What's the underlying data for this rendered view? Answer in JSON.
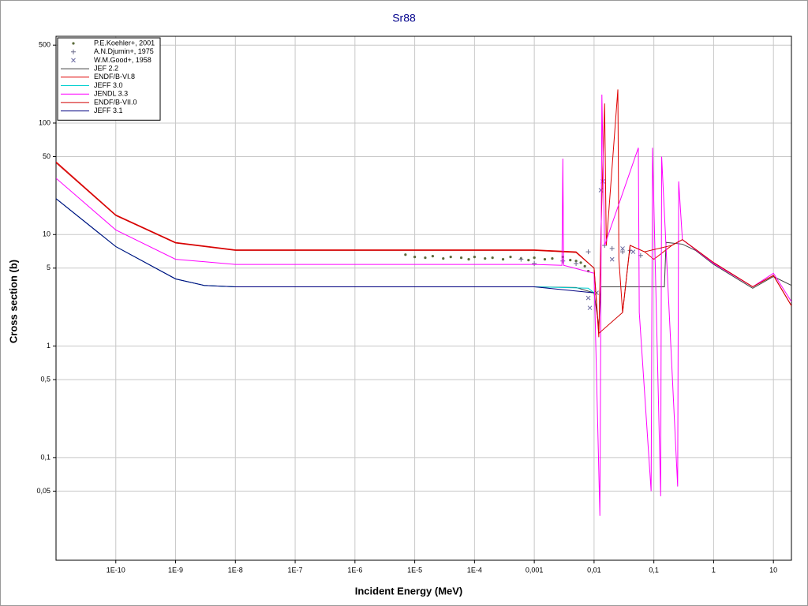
{
  "chart_data": {
    "type": "line",
    "title": "Sr88",
    "x_label": "Incident Energy (MeV)",
    "y_label": "Cross section (b)",
    "xscale": "log",
    "yscale": "log",
    "grid": true,
    "legend": "upper-left",
    "xlim": [
      1e-11,
      20
    ],
    "ylim": [
      0.012,
      600
    ],
    "xticks": [
      {
        "value": 1e-10,
        "label": "1E-10"
      },
      {
        "value": 1e-09,
        "label": "1E-9"
      },
      {
        "value": 1e-08,
        "label": "1E-8"
      },
      {
        "value": 1e-07,
        "label": "1E-7"
      },
      {
        "value": 1e-06,
        "label": "1E-6"
      },
      {
        "value": 1e-05,
        "label": "1E-5"
      },
      {
        "value": 0.0001,
        "label": "1E-4"
      },
      {
        "value": 0.001,
        "label": "0,001"
      },
      {
        "value": 0.01,
        "label": "0,01"
      },
      {
        "value": 0.1,
        "label": "0,1"
      },
      1,
      10
    ],
    "yticks": [
      500,
      100,
      50,
      10,
      5,
      1,
      {
        "value": 0.5,
        "label": "0,5"
      },
      {
        "value": 0.1,
        "label": "0,1"
      },
      {
        "value": 0.05,
        "label": "0,05"
      }
    ],
    "series": [
      {
        "name": "P.E.Koehler+, 2001",
        "style": "dots",
        "color": "#5a6a3a",
        "x": [
          7e-06,
          1e-05,
          1.5e-05,
          2e-05,
          3e-05,
          4e-05,
          6e-05,
          8e-05,
          0.0001,
          0.00015,
          0.0002,
          0.0003,
          0.0004,
          0.0006,
          0.0008,
          0.001,
          0.0015,
          0.002,
          0.003,
          0.004,
          0.005,
          0.006,
          0.007,
          0.008
        ],
        "values": [
          6.6,
          6.3,
          6.2,
          6.4,
          6.1,
          6.3,
          6.2,
          6.0,
          6.3,
          6.1,
          6.2,
          6.0,
          6.3,
          6.1,
          5.9,
          6.2,
          6.0,
          6.1,
          6.3,
          5.9,
          5.8,
          5.6,
          5.2,
          4.7
        ]
      },
      {
        "name": "A.N.Djumin+, 1975",
        "style": "plus",
        "color": "#6a6a8a",
        "x": [
          0.0006,
          0.001,
          0.003,
          0.005,
          0.008,
          0.015,
          0.02,
          0.03,
          0.04,
          0.06
        ],
        "values": [
          6.0,
          5.5,
          5.8,
          5.5,
          7.0,
          8.0,
          7.5,
          7.0,
          7.2,
          6.5
        ]
      },
      {
        "name": "W.M.Good+, 1958",
        "style": "cross",
        "color": "#6a6aa0",
        "x": [
          0.008,
          0.0085,
          0.011,
          0.013,
          0.014,
          0.02,
          0.03,
          0.045
        ],
        "values": [
          2.7,
          2.2,
          3.0,
          25,
          30,
          6.0,
          7.5,
          7.0
        ]
      },
      {
        "name": "JEF 2.2",
        "style": "line",
        "color": "#404040",
        "x": [
          1e-11,
          1e-10,
          1e-09,
          3e-09,
          1e-08,
          1e-06,
          0.001,
          0.005,
          0.01,
          0.012,
          0.013,
          0.02,
          0.05,
          0.1,
          0.15,
          0.16,
          0.3,
          0.5,
          1,
          2,
          4.5,
          10,
          20
        ],
        "values": [
          21,
          7.8,
          4.0,
          3.5,
          3.4,
          3.4,
          3.4,
          3.35,
          3.0,
          1.5,
          3.4,
          3.4,
          3.4,
          3.4,
          3.4,
          8.5,
          8.2,
          7.2,
          5.4,
          4.3,
          3.3,
          4.2,
          3.5
        ]
      },
      {
        "name": "ENDF/B-VI.8",
        "style": "line",
        "color": "#e00000",
        "x": [
          1e-11,
          1e-10,
          1e-09,
          1e-08,
          0.001,
          0.005,
          0.01,
          0.012,
          0.013,
          0.015,
          0.016,
          0.025,
          0.026,
          0.03,
          0.04,
          0.07,
          0.1,
          0.2,
          0.3,
          1,
          4.5,
          10,
          20
        ],
        "values": [
          45,
          15,
          8.5,
          7.3,
          7.3,
          7.0,
          5.0,
          1.2,
          10,
          150,
          8.0,
          200,
          6.0,
          2.0,
          8.0,
          7.0,
          6.0,
          8.0,
          9.0,
          5.6,
          3.4,
          4.3,
          2.3
        ]
      },
      {
        "name": "JEFF 3.0",
        "style": "line",
        "color": "#00d0d0",
        "x": [
          1e-11,
          1e-10,
          1e-09,
          3e-09,
          1e-08,
          0.001,
          0.008,
          0.01
        ],
        "values": [
          21,
          7.8,
          4.0,
          3.5,
          3.4,
          3.4,
          3.3,
          3.0
        ]
      },
      {
        "name": "JENDL 3.3",
        "style": "line",
        "color": "#ff00ff",
        "x": [
          1e-11,
          1e-10,
          1e-09,
          1e-08,
          0.001,
          0.0029,
          0.003,
          0.0031,
          0.01,
          0.0125,
          0.0135,
          0.015,
          0.055,
          0.057,
          0.09,
          0.095,
          0.13,
          0.135,
          0.25,
          0.26,
          0.3,
          1,
          4.5,
          10,
          20
        ],
        "values": [
          32,
          11,
          6.0,
          5.4,
          5.4,
          5.3,
          48,
          5.3,
          4.5,
          0.03,
          180,
          8.0,
          60,
          2.0,
          0.05,
          60,
          0.045,
          50,
          0.055,
          30,
          9.0,
          5.5,
          3.4,
          4.5,
          2.5
        ]
      },
      {
        "name": "ENDF/B-VII.0",
        "style": "line",
        "color": "#d00000",
        "x": [
          1e-11,
          1e-10,
          1e-09,
          1e-08,
          0.001,
          0.005,
          0.01,
          0.012,
          0.03,
          0.04,
          0.07,
          0.2,
          0.3,
          1,
          4.5,
          10,
          20
        ],
        "values": [
          44,
          14.8,
          8.4,
          7.2,
          7.2,
          6.9,
          5.0,
          1.3,
          2.0,
          8.0,
          7.0,
          8.0,
          9.0,
          5.6,
          3.4,
          4.3,
          2.3
        ]
      },
      {
        "name": "JEFF 3.1",
        "style": "line",
        "color": "#000080",
        "x": [
          1e-11,
          1e-10,
          1e-09,
          3e-09,
          1e-08,
          0.001,
          0.01
        ],
        "values": [
          21,
          7.8,
          4.0,
          3.5,
          3.4,
          3.4,
          3.0
        ]
      }
    ]
  }
}
